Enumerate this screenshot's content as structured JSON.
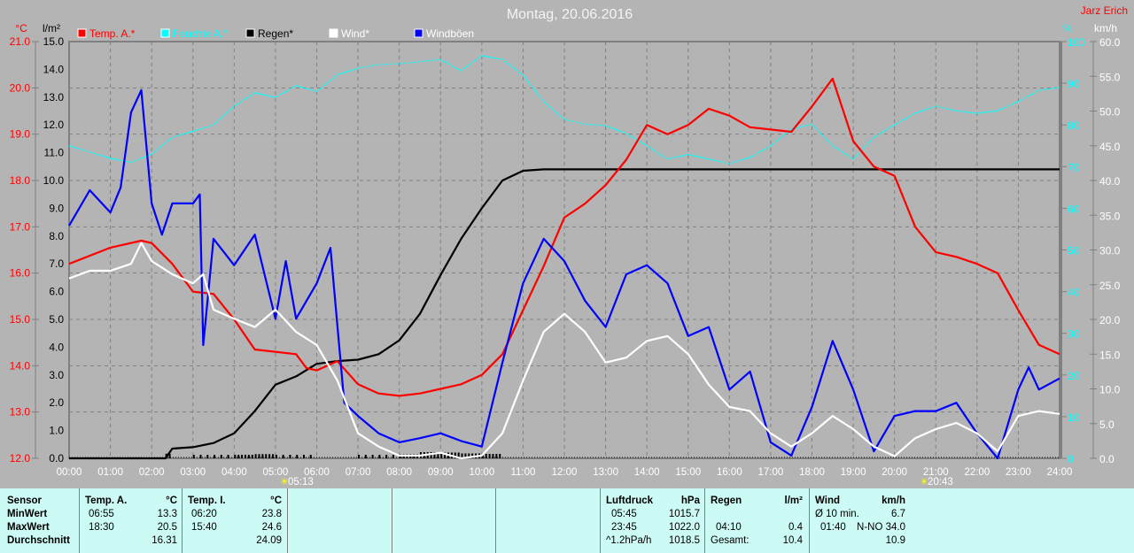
{
  "header": {
    "title": "Montag, 20.06.2016",
    "author": "Jarz Erich"
  },
  "chart_data": {
    "type": "line",
    "title": "Montag, 20.06.2016",
    "x_ticks": [
      "00:00",
      "01:00",
      "02:00",
      "03:00",
      "04:00",
      "05:00",
      "06:00",
      "07:00",
      "08:00",
      "09:00",
      "10:00",
      "11:00",
      "12:00",
      "13:00",
      "14:00",
      "15:00",
      "16:00",
      "17:00",
      "18:00",
      "19:00",
      "20:00",
      "21:00",
      "22:00",
      "23:00",
      "24:00"
    ],
    "xlim_hours": [
      0,
      24
    ],
    "grid": true,
    "legend_position": "top",
    "axes": {
      "temp": {
        "unit": "°C",
        "ylim": [
          12,
          21
        ],
        "ticks": [
          "12.0",
          "13.0",
          "14.0",
          "15.0",
          "16.0",
          "17.0",
          "18.0",
          "19.0",
          "20.0",
          "21.0"
        ],
        "color": "#ff0000"
      },
      "rain": {
        "unit": "l/m²",
        "ylim": [
          0,
          15
        ],
        "ticks": [
          "0.0",
          "1.0",
          "2.0",
          "3.0",
          "4.0",
          "5.0",
          "6.0",
          "7.0",
          "8.0",
          "9.0",
          "10.0",
          "11.0",
          "12.0",
          "13.0",
          "14.0",
          "15.0"
        ],
        "color": "#000000"
      },
      "humidity": {
        "unit": "%",
        "ylim": [
          0,
          100
        ],
        "ticks": [
          "0",
          "10",
          "20",
          "30",
          "40",
          "50",
          "60",
          "70",
          "80",
          "90",
          "100"
        ],
        "color": "#00ffff"
      },
      "wind": {
        "unit": "km/h",
        "ylim": [
          0,
          60
        ],
        "ticks": [
          "0.0",
          "5.0",
          "10.0",
          "15.0",
          "20.0",
          "25.0",
          "30.0",
          "35.0",
          "40.0",
          "45.0",
          "50.0",
          "55.0",
          "60.0"
        ],
        "color": "#ffffff"
      }
    },
    "series": [
      {
        "name": "Temp. A.*",
        "axis": "temp",
        "color": "#ff0000",
        "x": [
          "00:00",
          "01:00",
          "01:45",
          "02:00",
          "02:30",
          "03:00",
          "03:30",
          "04:00",
          "04:30",
          "05:00",
          "05:30",
          "05:45",
          "06:00",
          "06:30",
          "07:00",
          "07:30",
          "08:00",
          "08:30",
          "09:00",
          "09:30",
          "10:00",
          "10:30",
          "11:00",
          "11:30",
          "12:00",
          "12:30",
          "13:00",
          "13:30",
          "14:00",
          "14:30",
          "15:00",
          "15:30",
          "16:00",
          "16:30",
          "17:00",
          "17:30",
          "18:00",
          "18:30",
          "19:00",
          "19:30",
          "20:00",
          "20:30",
          "21:00",
          "21:30",
          "22:00",
          "22:30",
          "23:00",
          "23:30",
          "24:00"
        ],
        "y": [
          16.2,
          16.55,
          16.7,
          16.65,
          16.2,
          15.6,
          15.55,
          15.0,
          14.35,
          14.3,
          14.25,
          13.95,
          13.9,
          14.1,
          13.6,
          13.4,
          13.35,
          13.4,
          13.5,
          13.6,
          13.8,
          14.25,
          15.2,
          16.15,
          17.2,
          17.5,
          17.9,
          18.45,
          19.2,
          19.0,
          19.2,
          19.55,
          19.4,
          19.15,
          19.1,
          19.05,
          19.6,
          20.2,
          18.85,
          18.3,
          18.1,
          17.0,
          16.45,
          16.35,
          16.2,
          16.0,
          15.2,
          14.45,
          14.25
        ]
      },
      {
        "name": "Feuchte A.*",
        "axis": "humidity",
        "color": "#00ffff",
        "x": [
          "00:00",
          "01:00",
          "01:30",
          "02:00",
          "02:30",
          "03:00",
          "03:30",
          "04:00",
          "04:30",
          "05:00",
          "05:30",
          "06:00",
          "06:30",
          "07:00",
          "07:30",
          "08:00",
          "09:00",
          "09:30",
          "10:00",
          "10:30",
          "11:00",
          "11:30",
          "12:00",
          "12:30",
          "13:00",
          "13:30",
          "14:00",
          "14:30",
          "15:00",
          "15:30",
          "16:00",
          "16:30",
          "17:00",
          "17:30",
          "18:00",
          "18:30",
          "19:00",
          "19:30",
          "20:00",
          "20:30",
          "21:00",
          "21:30",
          "22:00",
          "22:30",
          "23:00",
          "23:30",
          "24:00"
        ],
        "y": [
          75,
          72,
          71,
          73,
          77,
          78.5,
          80,
          84.5,
          87.7,
          86.6,
          89.4,
          88,
          92,
          93.6,
          94.5,
          94.7,
          95.7,
          93,
          96.6,
          95.7,
          92,
          85.6,
          81.3,
          80.2,
          79.8,
          78,
          75,
          71.8,
          72.9,
          71.8,
          70.7,
          72.2,
          75,
          79,
          80.2,
          75,
          71.8,
          77,
          80,
          82.8,
          84.5,
          83.4,
          82.8,
          83.4,
          85.6,
          88.3,
          89
        ]
      },
      {
        "name": "Regen*",
        "axis": "rain",
        "color": "#000000",
        "x": [
          "00:00",
          "02:20",
          "02:30",
          "03:00",
          "03:30",
          "04:00",
          "04:30",
          "05:00",
          "05:30",
          "06:00",
          "06:30",
          "07:00",
          "07:30",
          "08:00",
          "08:30",
          "09:00",
          "09:30",
          "10:00",
          "10:30",
          "11:00",
          "11:30",
          "24:00"
        ],
        "y": [
          0,
          0,
          0.35,
          0.4,
          0.55,
          0.9,
          1.7,
          2.65,
          2.95,
          3.4,
          3.5,
          3.55,
          3.75,
          4.25,
          5.2,
          6.6,
          7.9,
          9.0,
          10.0,
          10.35,
          10.4,
          10.4
        ]
      },
      {
        "name": "Wind*",
        "axis": "wind",
        "color": "#ffffff",
        "x": [
          "00:00",
          "00:30",
          "01:00",
          "01:30",
          "01:45",
          "02:00",
          "02:30",
          "03:00",
          "03:15",
          "03:30",
          "04:00",
          "04:30",
          "05:00",
          "05:30",
          "06:00",
          "06:30",
          "07:00",
          "07:30",
          "08:00",
          "08:30",
          "09:00",
          "09:30",
          "10:00",
          "10:30",
          "11:00",
          "11:30",
          "12:00",
          "12:30",
          "13:00",
          "13:30",
          "14:00",
          "14:30",
          "15:00",
          "15:30",
          "16:00",
          "16:30",
          "17:00",
          "17:30",
          "18:00",
          "18:30",
          "19:00",
          "19:30",
          "20:00",
          "20:30",
          "21:00",
          "21:30",
          "22:00",
          "22:30",
          "23:00",
          "23:30",
          "24:00"
        ],
        "y": [
          25.9,
          27,
          27,
          28,
          31,
          28.4,
          26.5,
          25.2,
          26.5,
          21.4,
          20.1,
          18.9,
          21.4,
          18.2,
          16.3,
          11.2,
          3.6,
          1.7,
          0.4,
          0.4,
          0.8,
          0,
          0.4,
          3.6,
          11.2,
          18.2,
          20.8,
          18.2,
          13.8,
          14.5,
          16.9,
          17.6,
          15,
          10.6,
          7.4,
          6.8,
          3.6,
          1.7,
          3.6,
          6.1,
          4.2,
          1.7,
          0.3,
          2.9,
          4.2,
          5.1,
          3.6,
          1,
          6.1,
          6.8,
          6.4
        ]
      },
      {
        "name": "Windböen",
        "axis": "wind",
        "color": "#0000ff",
        "x": [
          "00:00",
          "00:30",
          "01:00",
          "01:15",
          "01:30",
          "01:45",
          "02:00",
          "02:15",
          "02:30",
          "03:00",
          "03:10",
          "03:15",
          "03:30",
          "04:00",
          "04:30",
          "05:00",
          "05:15",
          "05:30",
          "06:00",
          "06:20",
          "06:40",
          "07:00",
          "07:30",
          "08:00",
          "08:30",
          "09:00",
          "09:30",
          "10:00",
          "10:30",
          "11:00",
          "11:30",
          "12:00",
          "12:30",
          "13:00",
          "13:30",
          "14:00",
          "14:30",
          "15:00",
          "15:30",
          "16:00",
          "16:30",
          "17:00",
          "17:30",
          "18:00",
          "18:30",
          "19:00",
          "19:30",
          "20:00",
          "20:30",
          "21:00",
          "21:30",
          "22:00",
          "22:30",
          "23:00",
          "23:15",
          "23:30",
          "24:00"
        ],
        "y": [
          33.5,
          38.6,
          35.4,
          39,
          49.8,
          53,
          36.7,
          32.2,
          36.7,
          36.7,
          38,
          16.3,
          31.6,
          27.8,
          32.2,
          20.1,
          28.4,
          20.1,
          25.2,
          30.3,
          8,
          6.1,
          3.6,
          2.3,
          2.9,
          3.6,
          2.5,
          1.7,
          13.8,
          25.2,
          31.6,
          28.4,
          22.7,
          18.9,
          26.5,
          27.8,
          25.2,
          17.6,
          18.9,
          9.9,
          12.5,
          2.3,
          0.4,
          7.4,
          16.9,
          9.9,
          1,
          6.1,
          6.8,
          6.8,
          8,
          3.6,
          0,
          9.9,
          13.1,
          9.9,
          11.5
        ]
      }
    ],
    "annotations": [
      {
        "label": "05:13",
        "type": "sunrise"
      },
      {
        "label": "20:43",
        "type": "sunset"
      }
    ]
  },
  "table": {
    "sensor": {
      "header": "Sensor",
      "rows": [
        "MinWert",
        "MaxWert",
        "Durchschnitt"
      ]
    },
    "temp_a": {
      "header": "Temp. A.",
      "unit": "°C",
      "min_time": "06:55",
      "min": "13.3",
      "max_time": "18:30",
      "max": "20.5",
      "avg": "16.31"
    },
    "temp_i": {
      "header": "Temp. I.",
      "unit": "°C",
      "min_time": "06:20",
      "min": "23.8",
      "max_time": "15:40",
      "max": "24.6",
      "avg": "24.09"
    },
    "pressure": {
      "header": "Luftdruck",
      "unit": "hPa",
      "min_time": "05:45",
      "min": "1015.7",
      "max_time": "23:45",
      "max": "1022.0",
      "trend": "^1.2hPa/h",
      "avg": "1018.5"
    },
    "rain": {
      "header": "Regen",
      "unit": "l/m²",
      "max_time": "04:10",
      "max": "0.4",
      "total_label": "Gesamt:",
      "total": "10.4"
    },
    "wind": {
      "header": "Wind",
      "unit": "km/h",
      "avg10_label": "Ø 10 min.",
      "avg10": "6.7",
      "max_time": "01:40",
      "max": "N-NO 34.0",
      "avg": "10.9"
    }
  }
}
